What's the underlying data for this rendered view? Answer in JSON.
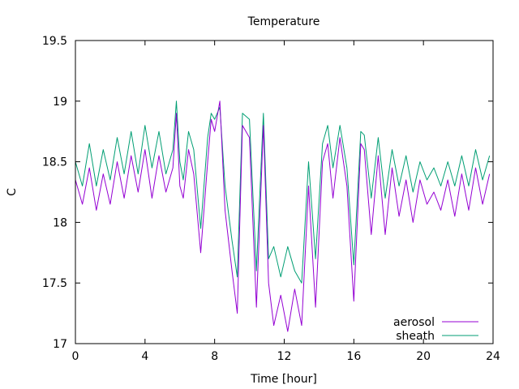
{
  "chart_data": {
    "type": "line",
    "title": "Temperature",
    "xlabel": "Time [hour]",
    "ylabel": "C",
    "xlim": [
      0,
      24
    ],
    "ylim": [
      17,
      19.5
    ],
    "xticks": [
      0,
      4,
      8,
      12,
      16,
      20,
      24
    ],
    "yticks": [
      17,
      17.5,
      18,
      18.5,
      19,
      19.5
    ],
    "xtick_labels": [
      "0",
      "4",
      "8",
      "12",
      "16",
      "20",
      "24"
    ],
    "ytick_labels": [
      "17",
      "17.5",
      "18",
      "18.5",
      "19",
      "19.5"
    ],
    "grid": false,
    "legend_position": "bottom-right",
    "series": [
      {
        "name": "aerosol",
        "color": "#9400d3",
        "x": [
          0,
          0.4,
          0.8,
          1.2,
          1.6,
          2.0,
          2.4,
          2.8,
          3.2,
          3.6,
          4.0,
          4.4,
          4.8,
          5.2,
          5.6,
          5.8,
          6.0,
          6.2,
          6.5,
          6.8,
          7.2,
          7.6,
          7.8,
          8.0,
          8.3,
          8.6,
          9.0,
          9.3,
          9.6,
          10.0,
          10.4,
          10.8,
          11.1,
          11.4,
          11.8,
          12.2,
          12.6,
          13.0,
          13.4,
          13.8,
          14.2,
          14.5,
          14.8,
          15.2,
          15.6,
          16.0,
          16.4,
          16.6,
          17.0,
          17.4,
          17.8,
          18.2,
          18.6,
          19.0,
          19.4,
          19.8,
          20.2,
          20.6,
          21.0,
          21.4,
          21.8,
          22.2,
          22.6,
          23.0,
          23.4,
          23.8
        ],
        "values": [
          18.35,
          18.15,
          18.45,
          18.1,
          18.4,
          18.15,
          18.5,
          18.2,
          18.55,
          18.25,
          18.6,
          18.2,
          18.55,
          18.25,
          18.45,
          18.9,
          18.3,
          18.2,
          18.6,
          18.4,
          17.75,
          18.5,
          18.85,
          18.75,
          19.0,
          18.1,
          17.6,
          17.25,
          18.8,
          18.7,
          17.3,
          18.8,
          17.5,
          17.15,
          17.4,
          17.1,
          17.45,
          17.15,
          18.3,
          17.3,
          18.5,
          18.65,
          18.2,
          18.7,
          18.3,
          17.35,
          18.65,
          18.6,
          17.9,
          18.55,
          17.9,
          18.45,
          18.05,
          18.35,
          18.0,
          18.35,
          18.15,
          18.25,
          18.1,
          18.35,
          18.05,
          18.4,
          18.1,
          18.45,
          18.15,
          18.4
        ]
      },
      {
        "name": "sheath",
        "color": "#009e73",
        "x": [
          0,
          0.4,
          0.8,
          1.2,
          1.6,
          2.0,
          2.4,
          2.8,
          3.2,
          3.6,
          4.0,
          4.4,
          4.8,
          5.2,
          5.6,
          5.8,
          6.0,
          6.2,
          6.5,
          6.8,
          7.2,
          7.6,
          7.8,
          8.0,
          8.3,
          8.6,
          9.0,
          9.3,
          9.6,
          10.0,
          10.4,
          10.8,
          11.1,
          11.4,
          11.8,
          12.2,
          12.6,
          13.0,
          13.4,
          13.8,
          14.2,
          14.5,
          14.8,
          15.2,
          15.6,
          16.0,
          16.4,
          16.6,
          17.0,
          17.4,
          17.8,
          18.2,
          18.6,
          19.0,
          19.4,
          19.8,
          20.2,
          20.6,
          21.0,
          21.4,
          21.8,
          22.2,
          22.6,
          23.0,
          23.4,
          23.8
        ],
        "values": [
          18.5,
          18.3,
          18.65,
          18.3,
          18.6,
          18.35,
          18.7,
          18.4,
          18.75,
          18.4,
          18.8,
          18.45,
          18.75,
          18.4,
          18.6,
          19.0,
          18.5,
          18.35,
          18.75,
          18.6,
          17.95,
          18.7,
          18.9,
          18.85,
          18.95,
          18.3,
          17.85,
          17.55,
          18.9,
          18.85,
          17.6,
          18.9,
          17.7,
          17.8,
          17.55,
          17.8,
          17.6,
          17.5,
          18.5,
          17.7,
          18.65,
          18.8,
          18.45,
          18.8,
          18.45,
          17.65,
          18.75,
          18.72,
          18.2,
          18.7,
          18.2,
          18.6,
          18.3,
          18.55,
          18.25,
          18.5,
          18.35,
          18.45,
          18.3,
          18.5,
          18.3,
          18.55,
          18.3,
          18.6,
          18.35,
          18.55
        ]
      }
    ]
  }
}
